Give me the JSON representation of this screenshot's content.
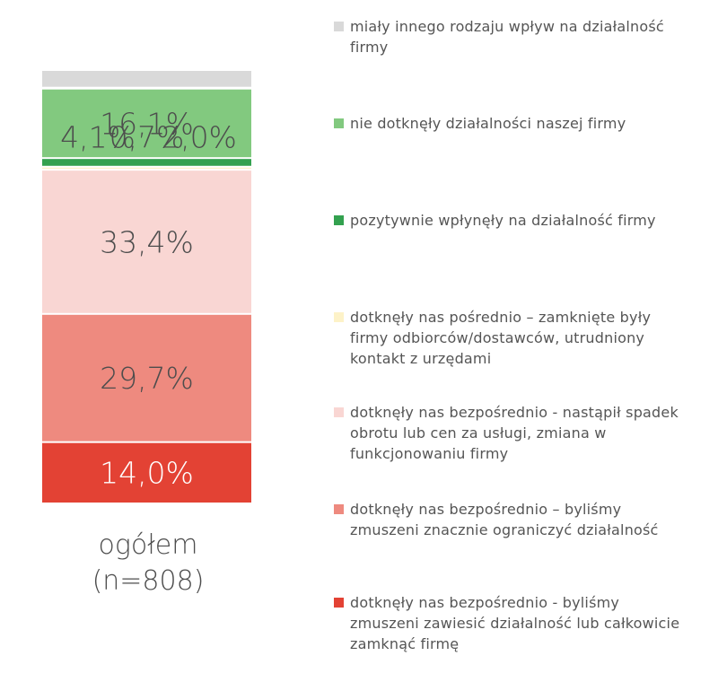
{
  "chart_data": {
    "type": "bar",
    "stacked": true,
    "percent": true,
    "categories": [
      "ogółem (n=808)"
    ],
    "category_lines": [
      "ogółem",
      "(n=808)"
    ],
    "series": [
      {
        "name": "dotknęły nas bezpośrednio - byliśmy zmuszeni zawiesić działalność lub całkowicie zamknąć firmę",
        "values": [
          14.0
        ],
        "label": "14,0%",
        "color": "#e34234",
        "label_color": "#ffffff"
      },
      {
        "name": "dotknęły nas bezpośrednio – byliśmy zmuszeni znacznie ograniczyć działalność",
        "values": [
          29.7
        ],
        "label": "29,7%",
        "color": "#ee8a7f",
        "label_color": "#4d4d4d"
      },
      {
        "name": "dotknęły nas bezpośrednio - nastąpił spadek obrotu lub cen za usługi, zmiana w funkcjonowaniu firmy",
        "values": [
          33.4
        ],
        "label": "33,4%",
        "color": "#f9d6d3",
        "label_color": "#4d4d4d"
      },
      {
        "name": "dotknęły nas pośrednio – zamknięte były firmy odbiorców/dostawców, utrudniony kontakt z urzędami",
        "values": [
          0.7
        ],
        "label": "0,7%",
        "color": "#fdf2c8",
        "label_color": "#4d4d4d"
      },
      {
        "name": "pozytywnie wpłynęły na działalność firmy",
        "values": [
          2.0
        ],
        "label": "2,0%",
        "color": "#33a14f",
        "label_color": "#4d4d4d"
      },
      {
        "name": "nie dotknęły działalności naszej firmy",
        "values": [
          16.1
        ],
        "label": "16,1%",
        "color": "#82c97f",
        "label_color": "#4d4d4d"
      },
      {
        "name": "miały innego rodzaju wpływ na działalność firmy",
        "values": [
          4.1
        ],
        "label": "4,1%",
        "color": "#d9d9d9",
        "label_color": "#4d4d4d"
      }
    ],
    "legend_order_top_to_bottom": [
      {
        "label": "miały innego rodzaju wpływ na działalność firmy",
        "color": "#d9d9d9"
      },
      {
        "label": "nie dotknęły działalności naszej firmy",
        "color": "#82c97f"
      },
      {
        "label": "pozytywnie wpłynęły na działalność firmy",
        "color": "#33a14f"
      },
      {
        "label": "dotknęły nas pośrednio – zamknięte były firmy odbiorców/dostawców, utrudniony kontakt z urzędami",
        "color": "#fdf2c8"
      },
      {
        "label": "dotknęły nas bezpośrednio - nastąpił spadek obrotu lub cen za usługi, zmiana w funkcjonowaniu firmy",
        "color": "#f9d6d3"
      },
      {
        "label": "dotknęły nas bezpośrednio – byliśmy zmuszeni znacznie ograniczyć działalność",
        "color": "#ee8a7f"
      },
      {
        "label": "dotknęły nas bezpośrednio - byliśmy zmuszeni zawiesić działalność lub całkowicie zamknąć firmę",
        "color": "#e34234"
      }
    ],
    "legend_position": "right",
    "ylim": [
      0,
      100
    ],
    "grid": false
  }
}
